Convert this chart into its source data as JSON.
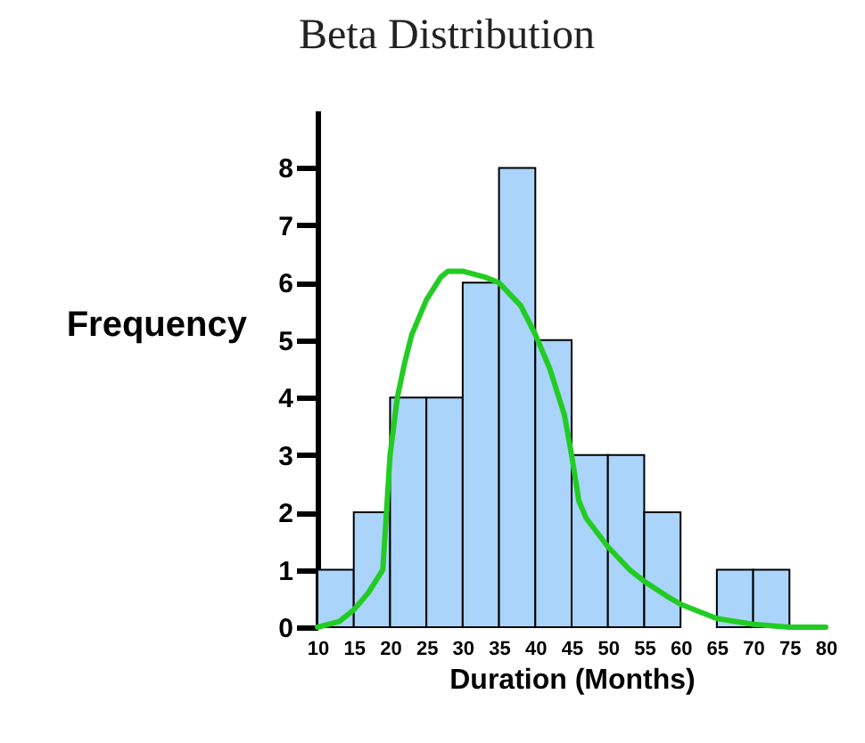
{
  "chart_data": {
    "type": "histogram",
    "title": "Beta Distribution",
    "xlabel": "Duration (Months)",
    "ylabel": "Frequency",
    "bins": [
      10,
      15,
      20,
      25,
      30,
      35,
      40,
      45,
      50,
      55,
      60,
      65,
      70,
      75,
      80
    ],
    "values": [
      1,
      2,
      4,
      4,
      6,
      8,
      5,
      3,
      3,
      2,
      0,
      1,
      1,
      0
    ],
    "color": "#aad4fa",
    "series": [
      {
        "type": "line",
        "color": "#22cc22",
        "x": [
          10,
          13,
          15,
          17,
          19,
          19.5,
          20,
          21,
          22,
          23,
          25,
          27,
          28,
          30,
          33,
          35,
          38,
          40,
          42,
          44,
          45,
          46,
          47,
          50,
          53,
          55,
          58,
          60,
          65,
          70,
          75,
          80
        ],
        "values": [
          0,
          0.1,
          0.3,
          0.6,
          1,
          2,
          3,
          4,
          4.6,
          5.1,
          5.7,
          6.1,
          6.2,
          6.2,
          6.1,
          6,
          5.6,
          5.1,
          4.5,
          3.7,
          3,
          2.2,
          1.9,
          1.4,
          1,
          0.8,
          0.55,
          0.4,
          0.15,
          0.05,
          0,
          0
        ]
      }
    ],
    "xlim": [
      10,
      80
    ],
    "xticks": [
      10,
      15,
      20,
      25,
      30,
      35,
      40,
      45,
      50,
      55,
      60,
      65,
      70,
      75,
      80
    ],
    "ylim": [
      0,
      9
    ],
    "yticks": [
      0,
      1,
      2,
      3,
      4,
      5,
      6,
      7,
      8
    ],
    "grid": false
  }
}
